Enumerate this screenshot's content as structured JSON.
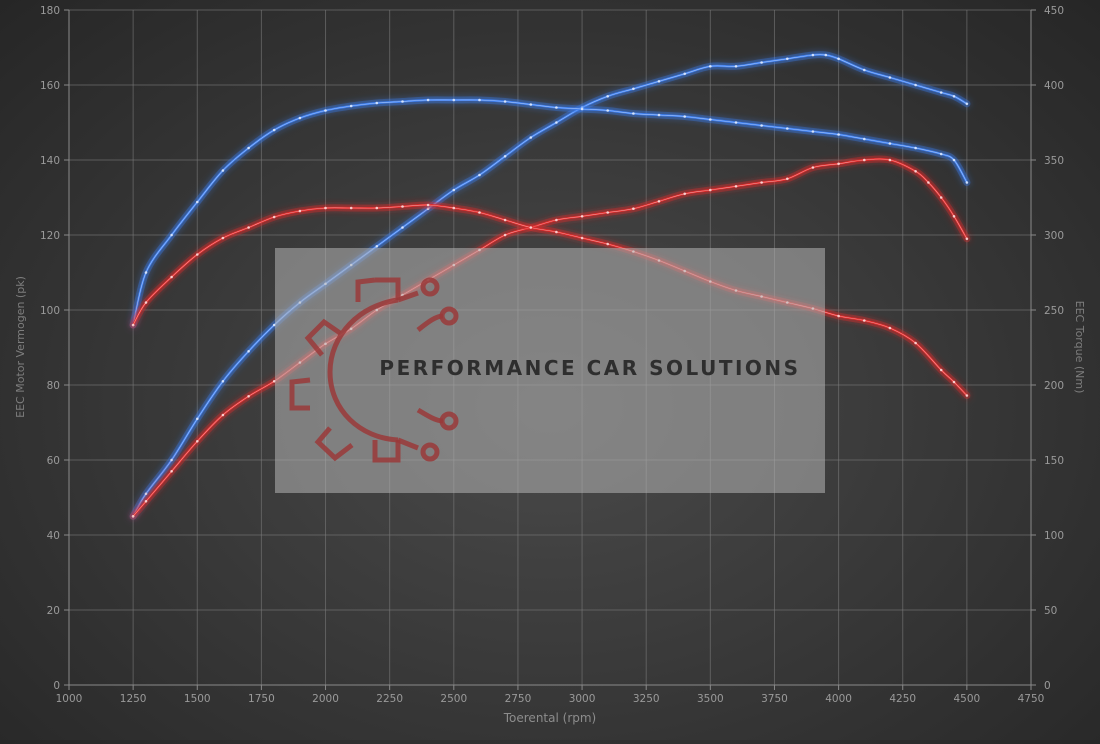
{
  "chart_data": {
    "type": "line",
    "xlabel": "Toerental (rpm)",
    "ylabel_left": "EEC Motor Vermogen (pk)",
    "ylabel_right": "EEC Torque (Nm)",
    "xlim": [
      1000,
      4750
    ],
    "ylim_left": [
      0,
      180
    ],
    "ylim_right": [
      0,
      450
    ],
    "x_ticks": [
      1000,
      1250,
      1500,
      1750,
      2000,
      2250,
      2500,
      2750,
      3000,
      3250,
      3500,
      3750,
      4000,
      4250,
      4500,
      4750
    ],
    "y_left_ticks": [
      0,
      20,
      40,
      60,
      80,
      100,
      120,
      140,
      160,
      180
    ],
    "y_right_ticks": [
      0,
      50,
      100,
      150,
      200,
      250,
      300,
      350,
      400,
      450
    ],
    "grid": true,
    "series": [
      {
        "color": "#3d7ff0",
        "axis": "left",
        "points": [
          [
            1250,
            45
          ],
          [
            1300,
            51
          ],
          [
            1400,
            60
          ],
          [
            1500,
            71
          ],
          [
            1600,
            81
          ],
          [
            1700,
            89
          ],
          [
            1800,
            96
          ],
          [
            1900,
            102
          ],
          [
            2000,
            107
          ],
          [
            2100,
            112
          ],
          [
            2200,
            117
          ],
          [
            2300,
            122
          ],
          [
            2400,
            127
          ],
          [
            2500,
            132
          ],
          [
            2600,
            136
          ],
          [
            2700,
            141
          ],
          [
            2800,
            146
          ],
          [
            2900,
            150
          ],
          [
            3000,
            154
          ],
          [
            3100,
            157
          ],
          [
            3200,
            159
          ],
          [
            3300,
            161
          ],
          [
            3400,
            163
          ],
          [
            3500,
            165
          ],
          [
            3600,
            165
          ],
          [
            3700,
            166
          ],
          [
            3800,
            167
          ],
          [
            3900,
            168
          ],
          [
            3950,
            168
          ],
          [
            4000,
            167
          ],
          [
            4100,
            164
          ],
          [
            4200,
            162
          ],
          [
            4300,
            160
          ],
          [
            4400,
            158
          ],
          [
            4450,
            157
          ],
          [
            4500,
            155
          ]
        ]
      },
      {
        "color": "#3d7ff0",
        "axis": "right",
        "points": [
          [
            1250,
            240
          ],
          [
            1300,
            275
          ],
          [
            1400,
            300
          ],
          [
            1500,
            322
          ],
          [
            1600,
            343
          ],
          [
            1700,
            358
          ],
          [
            1800,
            370
          ],
          [
            1900,
            378
          ],
          [
            2000,
            383
          ],
          [
            2100,
            386
          ],
          [
            2200,
            388
          ],
          [
            2300,
            389
          ],
          [
            2400,
            390
          ],
          [
            2500,
            390
          ],
          [
            2600,
            390
          ],
          [
            2700,
            389
          ],
          [
            2800,
            387
          ],
          [
            2900,
            385
          ],
          [
            3000,
            384
          ],
          [
            3100,
            383
          ],
          [
            3200,
            381
          ],
          [
            3300,
            380
          ],
          [
            3400,
            379
          ],
          [
            3500,
            377
          ],
          [
            3600,
            375
          ],
          [
            3700,
            373
          ],
          [
            3800,
            371
          ],
          [
            3900,
            369
          ],
          [
            4000,
            367
          ],
          [
            4100,
            364
          ],
          [
            4200,
            361
          ],
          [
            4300,
            358
          ],
          [
            4400,
            354
          ],
          [
            4450,
            350
          ],
          [
            4500,
            335
          ]
        ]
      },
      {
        "color": "#e02a2a",
        "axis": "left",
        "points": [
          [
            1250,
            45
          ],
          [
            1300,
            49
          ],
          [
            1400,
            57
          ],
          [
            1500,
            65
          ],
          [
            1600,
            72
          ],
          [
            1700,
            77
          ],
          [
            1800,
            81
          ],
          [
            1900,
            86
          ],
          [
            2000,
            91
          ],
          [
            2100,
            95
          ],
          [
            2200,
            100
          ],
          [
            2300,
            104
          ],
          [
            2400,
            108
          ],
          [
            2500,
            112
          ],
          [
            2600,
            116
          ],
          [
            2700,
            120
          ],
          [
            2800,
            122
          ],
          [
            2900,
            124
          ],
          [
            3000,
            125
          ],
          [
            3100,
            126
          ],
          [
            3200,
            127
          ],
          [
            3300,
            129
          ],
          [
            3400,
            131
          ],
          [
            3500,
            132
          ],
          [
            3600,
            133
          ],
          [
            3700,
            134
          ],
          [
            3800,
            135
          ],
          [
            3900,
            138
          ],
          [
            4000,
            139
          ],
          [
            4100,
            140
          ],
          [
            4200,
            140
          ],
          [
            4300,
            137
          ],
          [
            4350,
            134
          ],
          [
            4400,
            130
          ],
          [
            4450,
            125
          ],
          [
            4500,
            119
          ]
        ]
      },
      {
        "color": "#e02a2a",
        "axis": "right",
        "points": [
          [
            1250,
            240
          ],
          [
            1300,
            255
          ],
          [
            1400,
            272
          ],
          [
            1500,
            287
          ],
          [
            1600,
            298
          ],
          [
            1700,
            305
          ],
          [
            1800,
            312
          ],
          [
            1900,
            316
          ],
          [
            2000,
            318
          ],
          [
            2100,
            318
          ],
          [
            2200,
            318
          ],
          [
            2300,
            319
          ],
          [
            2400,
            320
          ],
          [
            2500,
            318
          ],
          [
            2600,
            315
          ],
          [
            2700,
            310
          ],
          [
            2800,
            305
          ],
          [
            2900,
            302
          ],
          [
            3000,
            298
          ],
          [
            3100,
            294
          ],
          [
            3200,
            289
          ],
          [
            3300,
            283
          ],
          [
            3400,
            276
          ],
          [
            3500,
            269
          ],
          [
            3600,
            263
          ],
          [
            3700,
            259
          ],
          [
            3800,
            255
          ],
          [
            3900,
            251
          ],
          [
            4000,
            246
          ],
          [
            4100,
            243
          ],
          [
            4200,
            238
          ],
          [
            4300,
            228
          ],
          [
            4400,
            210
          ],
          [
            4450,
            202
          ],
          [
            4500,
            193
          ]
        ]
      }
    ]
  },
  "watermark": {
    "text": "PERFORMANCE CAR SOLUTIONS",
    "icon": "gear-circuit-icon"
  }
}
